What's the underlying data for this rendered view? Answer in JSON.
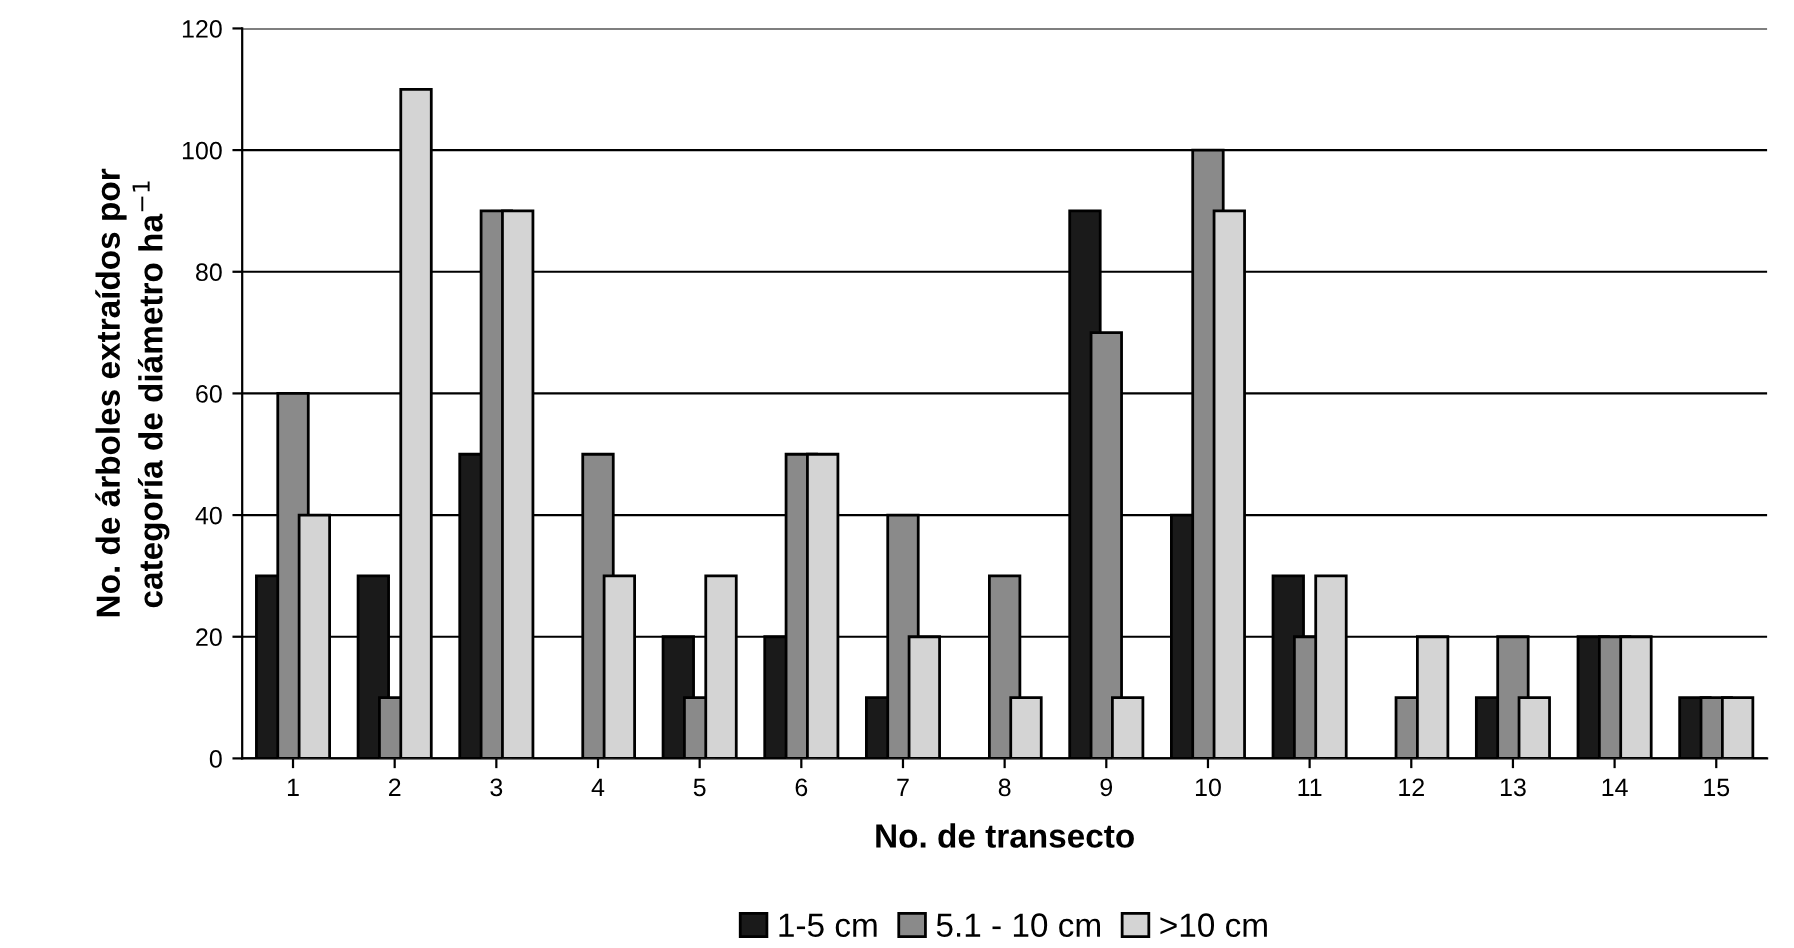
{
  "chart_data": {
    "type": "bar",
    "xlabel": "No. de transecto",
    "ylabel": "No. de árboles extraídos por\ncategoría de diámetro ha$^{−1}$",
    "categories": [
      "1",
      "2",
      "3",
      "4",
      "5",
      "6",
      "7",
      "8",
      "9",
      "10",
      "11",
      "12",
      "13",
      "14",
      "15"
    ],
    "series": [
      {
        "name": "1-5 cm",
        "color": "#1a1a1a",
        "values": [
          30,
          30,
          50,
          null,
          20,
          20,
          10,
          null,
          90,
          40,
          30,
          null,
          10,
          20,
          10
        ]
      },
      {
        "name": "5.1 - 10 cm",
        "color": "#8a8a8a",
        "values": [
          60,
          10,
          90,
          50,
          10,
          50,
          40,
          30,
          70,
          100,
          20,
          10,
          20,
          20,
          10
        ]
      },
      {
        "name": ">10 cm",
        "color": "#d4d4d4",
        "values": [
          40,
          110,
          90,
          30,
          30,
          50,
          20,
          10,
          10,
          90,
          30,
          20,
          10,
          20,
          10
        ]
      }
    ],
    "ylim": [
      0,
      120
    ],
    "yticks": [
      0,
      20,
      40,
      60,
      80,
      100,
      120
    ],
    "grid": "y",
    "legend": "bottom"
  }
}
